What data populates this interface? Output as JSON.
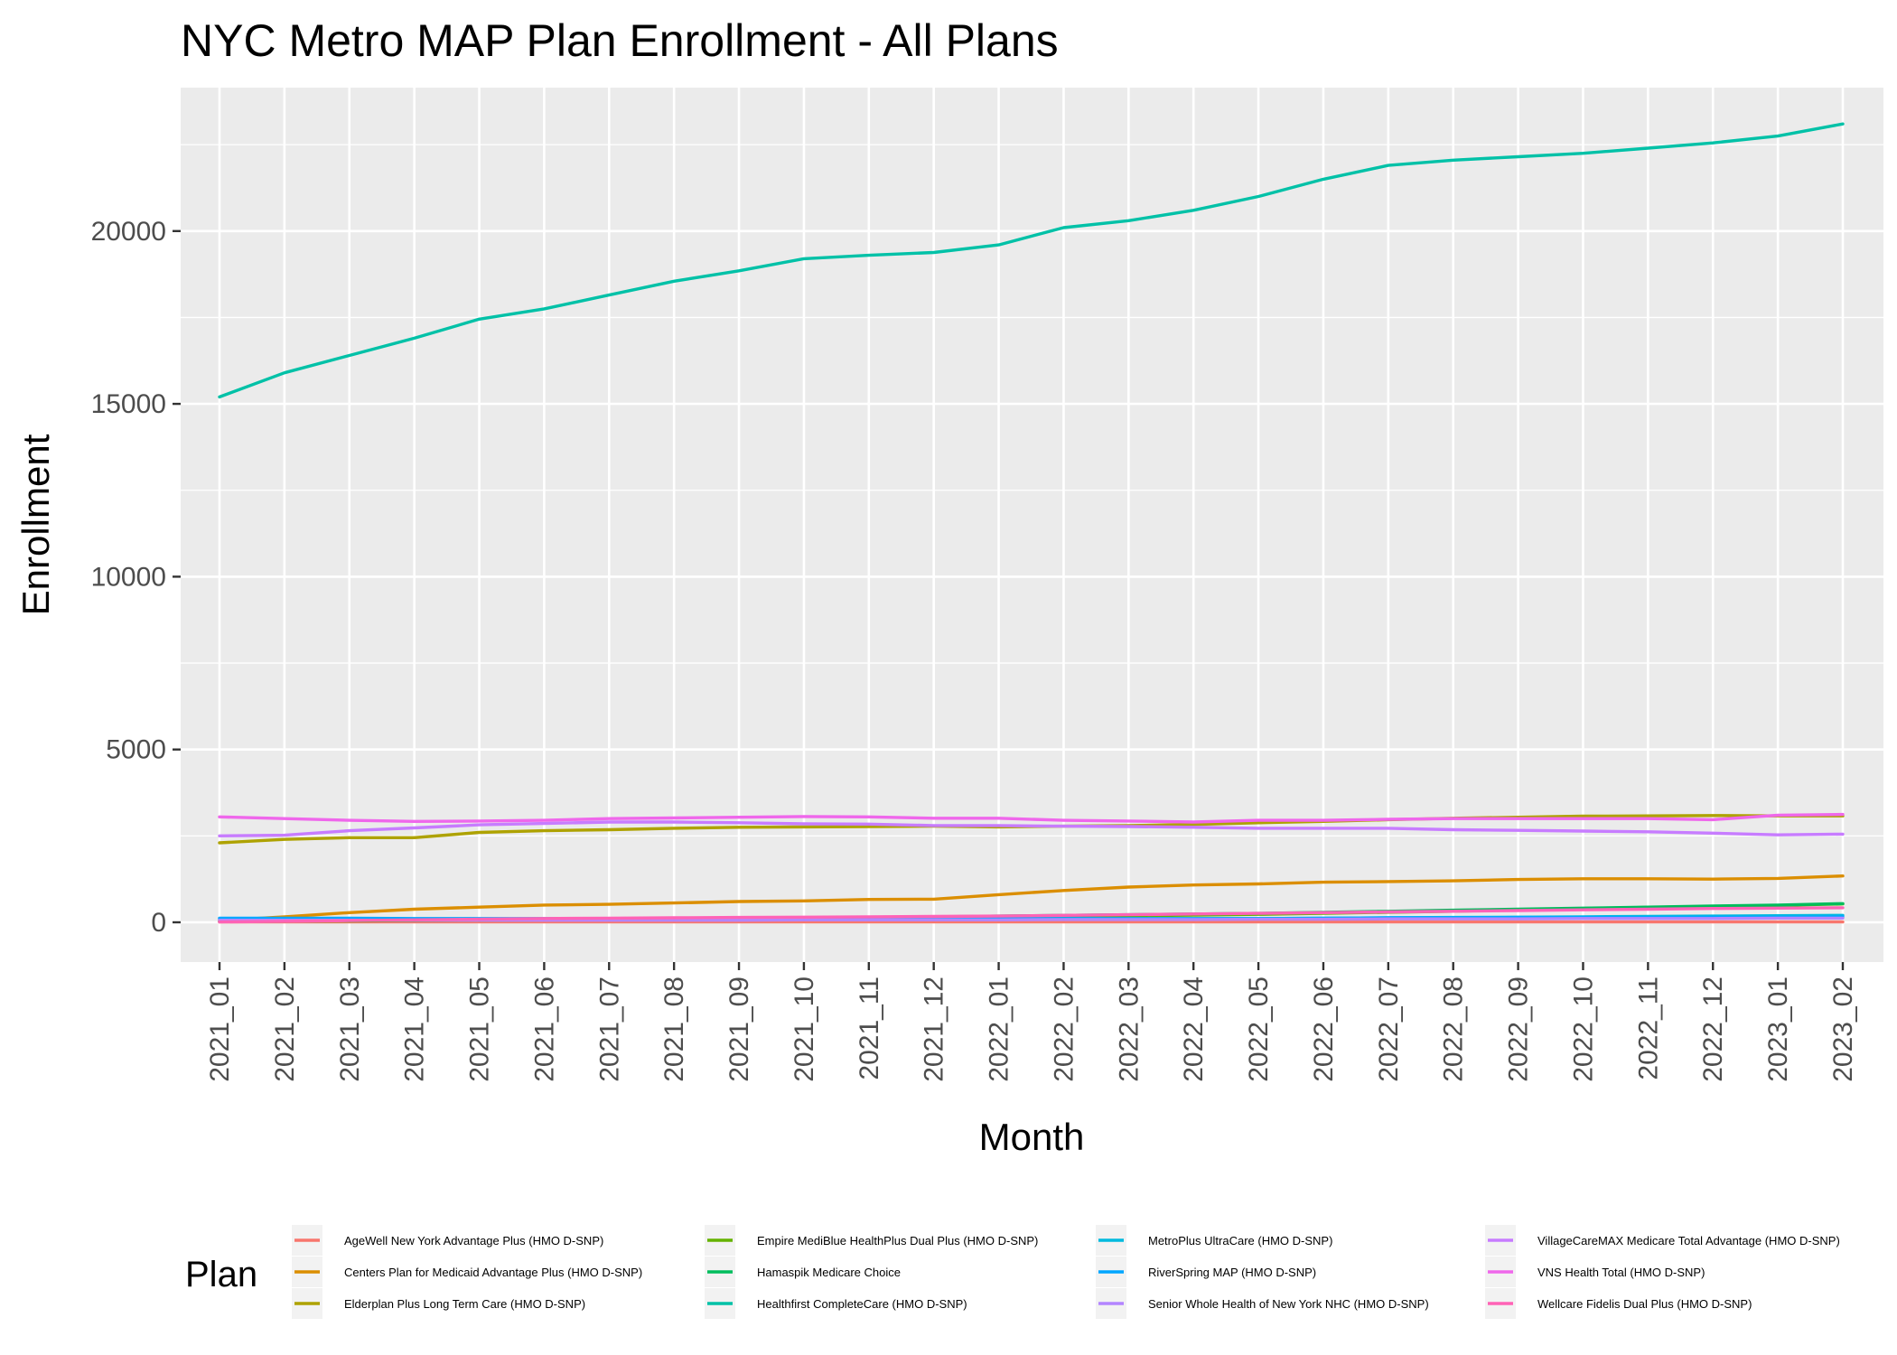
{
  "chart_data": {
    "type": "line",
    "title": "NYC Metro MAP Plan Enrollment - All Plans",
    "xlabel": "Month",
    "ylabel": "Enrollment",
    "ylim": [
      -1150,
      24150
    ],
    "yticks": [
      0,
      5000,
      10000,
      15000,
      20000
    ],
    "grid": true,
    "legend_title": "Plan",
    "legend_placement": "bottom",
    "x": [
      "2021_01",
      "2021_02",
      "2021_03",
      "2021_04",
      "2021_05",
      "2021_06",
      "2021_07",
      "2021_08",
      "2021_09",
      "2021_10",
      "2021_11",
      "2021_12",
      "2022_01",
      "2022_02",
      "2022_03",
      "2022_04",
      "2022_05",
      "2022_06",
      "2022_07",
      "2022_08",
      "2022_09",
      "2022_10",
      "2022_11",
      "2022_12",
      "2023_01",
      "2023_02"
    ],
    "series": [
      {
        "name": "AgeWell New York Advantage Plus (HMO D-SNP)",
        "color": "#F8766D",
        "values": [
          10,
          10,
          10,
          10,
          10,
          10,
          10,
          10,
          10,
          10,
          10,
          10,
          10,
          10,
          10,
          10,
          10,
          10,
          10,
          10,
          10,
          10,
          10,
          10,
          10,
          10
        ]
      },
      {
        "name": "Centers Plan for Medicaid Advantage Plus (HMO D-SNP)",
        "color": "#DB8E00",
        "values": [
          50,
          160,
          280,
          380,
          440,
          500,
          520,
          560,
          600,
          620,
          660,
          670,
          800,
          920,
          1020,
          1080,
          1110,
          1160,
          1180,
          1200,
          1240,
          1260,
          1260,
          1250,
          1270,
          1340
        ]
      },
      {
        "name": "Elderplan Plus Long Term Care (HMO D-SNP)",
        "color": "#AEA200",
        "values": [
          2300,
          2400,
          2450,
          2450,
          2600,
          2650,
          2680,
          2720,
          2750,
          2760,
          2770,
          2780,
          2760,
          2780,
          2800,
          2830,
          2880,
          2920,
          2970,
          3010,
          3040,
          3070,
          3080,
          3090,
          3080,
          3080
        ]
      },
      {
        "name": "Empire MediBlue HealthPlus Dual Plus (HMO D-SNP)",
        "color": "#64B200",
        "values": [
          20,
          30,
          40,
          50,
          60,
          70,
          80,
          90,
          100,
          110,
          120,
          130,
          150,
          170,
          190,
          210,
          230,
          260,
          290,
          320,
          360,
          400,
          430,
          460,
          490,
          530
        ]
      },
      {
        "name": "Hamaspik Medicare Choice",
        "color": "#00BD5C",
        "values": [
          30,
          40,
          50,
          60,
          70,
          80,
          90,
          100,
          110,
          120,
          140,
          160,
          180,
          200,
          220,
          240,
          260,
          290,
          320,
          350,
          380,
          410,
          440,
          470,
          500,
          540
        ]
      },
      {
        "name": "Healthfirst CompleteCare (HMO D-SNP)",
        "color": "#00C1A7",
        "values": [
          15200,
          15900,
          16400,
          16900,
          17450,
          17750,
          18150,
          18550,
          18850,
          19200,
          19300,
          19380,
          19600,
          20100,
          20300,
          20600,
          21000,
          21500,
          21900,
          22050,
          22150,
          22250,
          22400,
          22550,
          22750,
          23100
        ]
      },
      {
        "name": "MetroPlus UltraCare (HMO D-SNP)",
        "color": "#00BADE",
        "values": [
          100,
          100,
          100,
          100,
          100,
          100,
          100,
          100,
          100,
          100,
          100,
          100,
          100,
          100,
          100,
          100,
          110,
          120,
          130,
          140,
          150,
          160,
          170,
          180,
          190,
          200
        ]
      },
      {
        "name": "RiverSpring MAP (HMO D-SNP)",
        "color": "#00A6FF",
        "values": [
          120,
          120,
          120,
          110,
          110,
          110,
          110,
          110,
          110,
          110,
          110,
          110,
          110,
          110,
          110,
          110,
          110,
          120,
          130,
          130,
          140,
          140,
          140,
          150,
          150,
          160
        ]
      },
      {
        "name": "Senior Whole Health of New York NHC (HMO D-SNP)",
        "color": "#B385FF",
        "values": [
          60,
          60,
          60,
          60,
          60,
          60,
          60,
          60,
          60,
          70,
          70,
          70,
          70,
          80,
          80,
          80,
          90,
          90,
          100,
          100,
          100,
          110,
          110,
          110,
          120,
          120
        ]
      },
      {
        "name": "VillageCareMAX Medicare Total Advantage (HMO D-SNP)",
        "color": "#C77CFF",
        "values": [
          2500,
          2520,
          2650,
          2730,
          2820,
          2860,
          2900,
          2900,
          2880,
          2850,
          2840,
          2800,
          2800,
          2780,
          2770,
          2750,
          2720,
          2720,
          2720,
          2680,
          2660,
          2640,
          2620,
          2580,
          2530,
          2550
        ]
      },
      {
        "name": "VNS Health Total (HMO D-SNP)",
        "color": "#EF67EB",
        "values": [
          3050,
          3000,
          2950,
          2920,
          2930,
          2950,
          3000,
          3020,
          3040,
          3060,
          3050,
          3010,
          3010,
          2950,
          2930,
          2900,
          2950,
          2950,
          2980,
          3000,
          3000,
          3000,
          3000,
          2970,
          3100,
          3120
        ]
      },
      {
        "name": "Wellcare Fidelis Dual Plus (HMO D-SNP)",
        "color": "#FF63B6",
        "values": [
          10,
          30,
          50,
          70,
          90,
          110,
          120,
          130,
          140,
          150,
          160,
          170,
          180,
          200,
          220,
          240,
          260,
          280,
          300,
          320,
          340,
          360,
          380,
          400,
          410,
          420
        ]
      }
    ]
  }
}
